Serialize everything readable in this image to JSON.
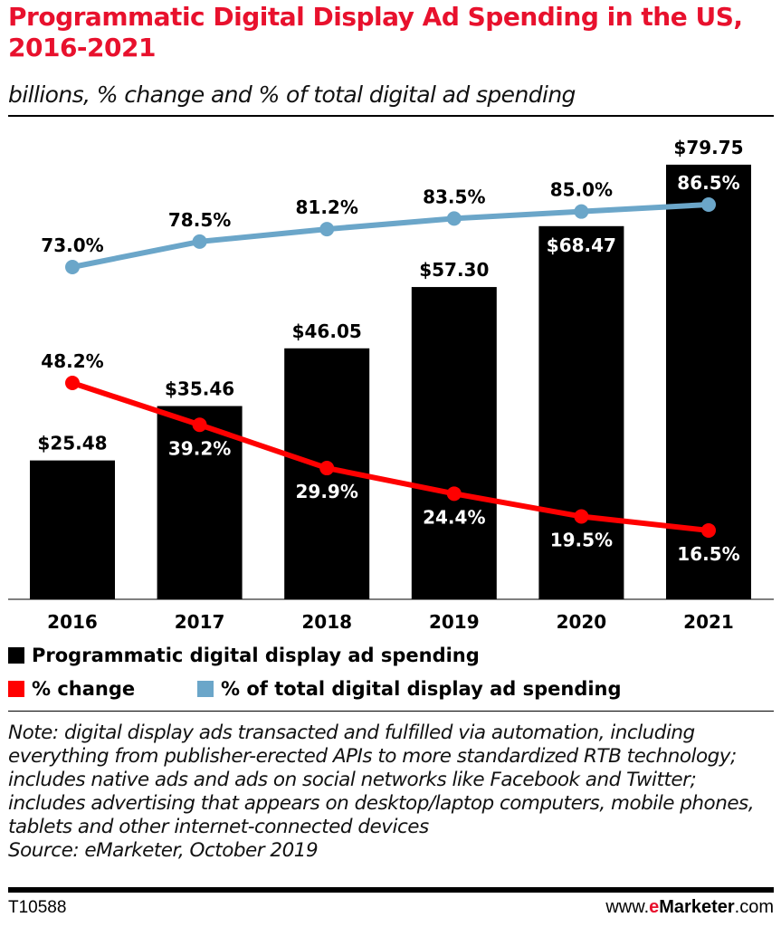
{
  "chart_data": {
    "type": "bar",
    "title": "Programmatic Digital Display Ad Spending in the US, 2016-2021",
    "subtitle": "billions, % change and % of total digital ad spending",
    "categories": [
      "2016",
      "2017",
      "2018",
      "2019",
      "2020",
      "2021"
    ],
    "series": [
      {
        "name": "Programmatic digital display ad spending",
        "type": "bar",
        "color": "#000000",
        "values": [
          25.48,
          35.46,
          46.05,
          57.3,
          68.47,
          79.75
        ],
        "labels": [
          "$25.48",
          "$35.46",
          "$46.05",
          "$57.30",
          "$68.47",
          "$79.75"
        ]
      },
      {
        "name": "% change",
        "type": "line",
        "color": "#ff0000",
        "values": [
          48.2,
          39.2,
          29.9,
          24.4,
          19.5,
          16.5
        ],
        "labels": [
          "48.2%",
          "39.2%",
          "29.9%",
          "24.4%",
          "19.5%",
          "16.5%"
        ]
      },
      {
        "name": "% of total digital display ad spending",
        "type": "line",
        "color": "#6ba6c9",
        "values": [
          73.0,
          78.5,
          81.2,
          83.5,
          85.0,
          86.5
        ],
        "labels": [
          "73.0%",
          "78.5%",
          "81.2%",
          "83.5%",
          "85.0%",
          "86.5%"
        ]
      }
    ],
    "grid": false,
    "legend": "bottom"
  },
  "note": "Note: digital display ads transacted and fulfilled via automation, including everything from publisher-erected APIs to more standardized RTB technology; includes native ads and ads on social networks like Facebook and Twitter; includes advertising that appears on desktop/laptop computers, mobile phones, tablets and other internet-connected devices",
  "source": "Source: eMarketer, October 2019",
  "footer": {
    "id": "T10588",
    "brand_pre": "www.",
    "brand_e": "e",
    "brand_main": "Marketer",
    "brand_post": ".com"
  }
}
